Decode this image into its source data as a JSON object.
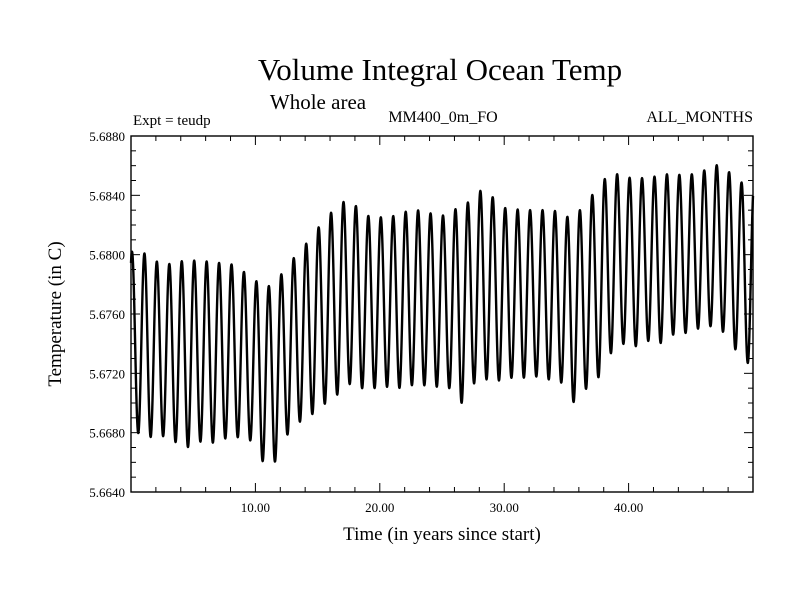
{
  "chart_data": {
    "type": "line",
    "title": "Volume Integral Ocean Temp",
    "subtitle": "Whole area",
    "annotations": {
      "experiment": "Expt = teudp",
      "field": "MM400_0m_FO",
      "period": "ALL_MONTHS"
    },
    "xlabel": "Time (in years since start)",
    "ylabel": "Temperature (in C)",
    "xlim": [
      0,
      50
    ],
    "ylim": [
      5.664,
      5.688
    ],
    "x_ticks": [
      {
        "value": 10,
        "label": "10.00"
      },
      {
        "value": 20,
        "label": "20.00"
      },
      {
        "value": 30,
        "label": "30.00"
      },
      {
        "value": 40,
        "label": "40.00"
      }
    ],
    "y_ticks": [
      {
        "value": 5.664,
        "label": "5.6640"
      },
      {
        "value": 5.668,
        "label": "5.6680"
      },
      {
        "value": 5.672,
        "label": "5.6720"
      },
      {
        "value": 5.676,
        "label": "5.6760"
      },
      {
        "value": 5.68,
        "label": "5.6800"
      },
      {
        "value": 5.684,
        "label": "5.6840"
      },
      {
        "value": 5.688,
        "label": "5.6880"
      }
    ],
    "grid": false,
    "series": [
      {
        "color": "#000000",
        "cycle_years": 1,
        "annual_maxima": [
          5.6802,
          5.68,
          5.6792,
          5.6795,
          5.6796,
          5.6796,
          5.6795,
          5.6794,
          5.6793,
          5.6785,
          5.678,
          5.6778,
          5.6793,
          5.6801,
          5.6812,
          5.6823,
          5.6832,
          5.6838,
          5.6829,
          5.6824,
          5.6826,
          5.6826,
          5.6831,
          5.6829,
          5.6827,
          5.6826,
          5.6834,
          5.6836,
          5.6848,
          5.6832,
          5.6831,
          5.683,
          5.683,
          5.683,
          5.6829,
          5.6823,
          5.6835,
          5.6844,
          5.6856,
          5.6853,
          5.6851,
          5.6852,
          5.6853,
          5.6855,
          5.6853,
          5.6855,
          5.6858,
          5.6862,
          5.6851,
          5.6847
        ],
        "annual_minima": [
          5.668,
          5.6677,
          5.6678,
          5.6674,
          5.667,
          5.6674,
          5.6673,
          5.6676,
          5.6677,
          5.6676,
          5.6661,
          5.6659,
          5.6678,
          5.6687,
          5.6692,
          5.6699,
          5.6705,
          5.6713,
          5.671,
          5.671,
          5.6711,
          5.671,
          5.6712,
          5.6712,
          5.6711,
          5.6711,
          5.6699,
          5.6713,
          5.6716,
          5.6715,
          5.6717,
          5.6717,
          5.6718,
          5.6716,
          5.6715,
          5.67,
          5.6709,
          5.6716,
          5.6733,
          5.674,
          5.6738,
          5.6742,
          5.674,
          5.6746,
          5.6747,
          5.675,
          5.6752,
          5.6749,
          5.6737,
          5.6727
        ]
      }
    ]
  }
}
